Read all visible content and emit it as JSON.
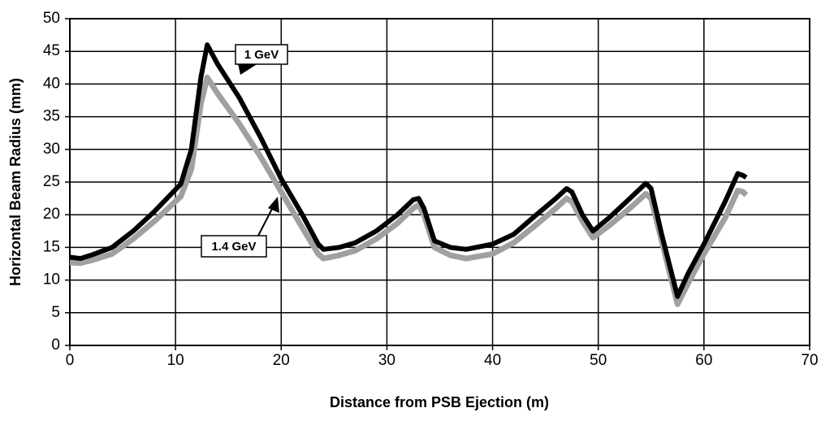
{
  "chart_data": {
    "type": "line",
    "x_label": "Distance from PSB Ejection (m)",
    "y_label": "Horizontal Beam Radius (mm)",
    "x": [
      0,
      1,
      2,
      4,
      6,
      8,
      10.5,
      11.5,
      12.4,
      13,
      14,
      16,
      18,
      20,
      22,
      23.5,
      24,
      25.5,
      27,
      29,
      31,
      32.5,
      33,
      33.5,
      34.5,
      36,
      37.5,
      40,
      42,
      44,
      46,
      47,
      47.5,
      48.5,
      49.5,
      51,
      53,
      54.5,
      55,
      56,
      57.5,
      58.5,
      60,
      62,
      63.2,
      63.7,
      64
    ],
    "series": [
      {
        "name": "1.4 GeV",
        "color": "#a0a0a0",
        "values": [
          12.7,
          12.6,
          13,
          14,
          16.3,
          19,
          22.8,
          27,
          37,
          41,
          38.5,
          34,
          29,
          23.5,
          18,
          14,
          13.3,
          13.8,
          14.5,
          16.3,
          18.7,
          21,
          21.5,
          20,
          15,
          13.8,
          13.3,
          14,
          15.7,
          18.3,
          21,
          22.5,
          22,
          19,
          16.5,
          18.3,
          21,
          23.2,
          22.5,
          16,
          6.3,
          9.5,
          14,
          19.5,
          23.7,
          23.5,
          23
        ]
      },
      {
        "name": "1 GeV",
        "color": "#000000",
        "values": [
          13.5,
          13.3,
          13.8,
          15,
          17.5,
          20.5,
          24.7,
          30,
          41,
          46,
          43,
          38,
          32,
          25.5,
          20,
          15.5,
          14.7,
          15,
          15.7,
          17.5,
          20,
          22.3,
          22.5,
          21,
          16,
          15,
          14.7,
          15.5,
          17,
          19.8,
          22.5,
          24,
          23.5,
          20,
          17.5,
          19.5,
          22.5,
          24.8,
          24,
          17,
          7.5,
          11,
          15.5,
          22,
          26.3,
          26,
          25.7
        ]
      }
    ],
    "xlim": [
      0,
      70
    ],
    "xticks": [
      0,
      10,
      20,
      30,
      40,
      50,
      60,
      70
    ],
    "ylim": [
      0,
      50
    ],
    "yticks": [
      0,
      5,
      10,
      15,
      20,
      25,
      30,
      35,
      40,
      45,
      50
    ],
    "grid": true
  }
}
